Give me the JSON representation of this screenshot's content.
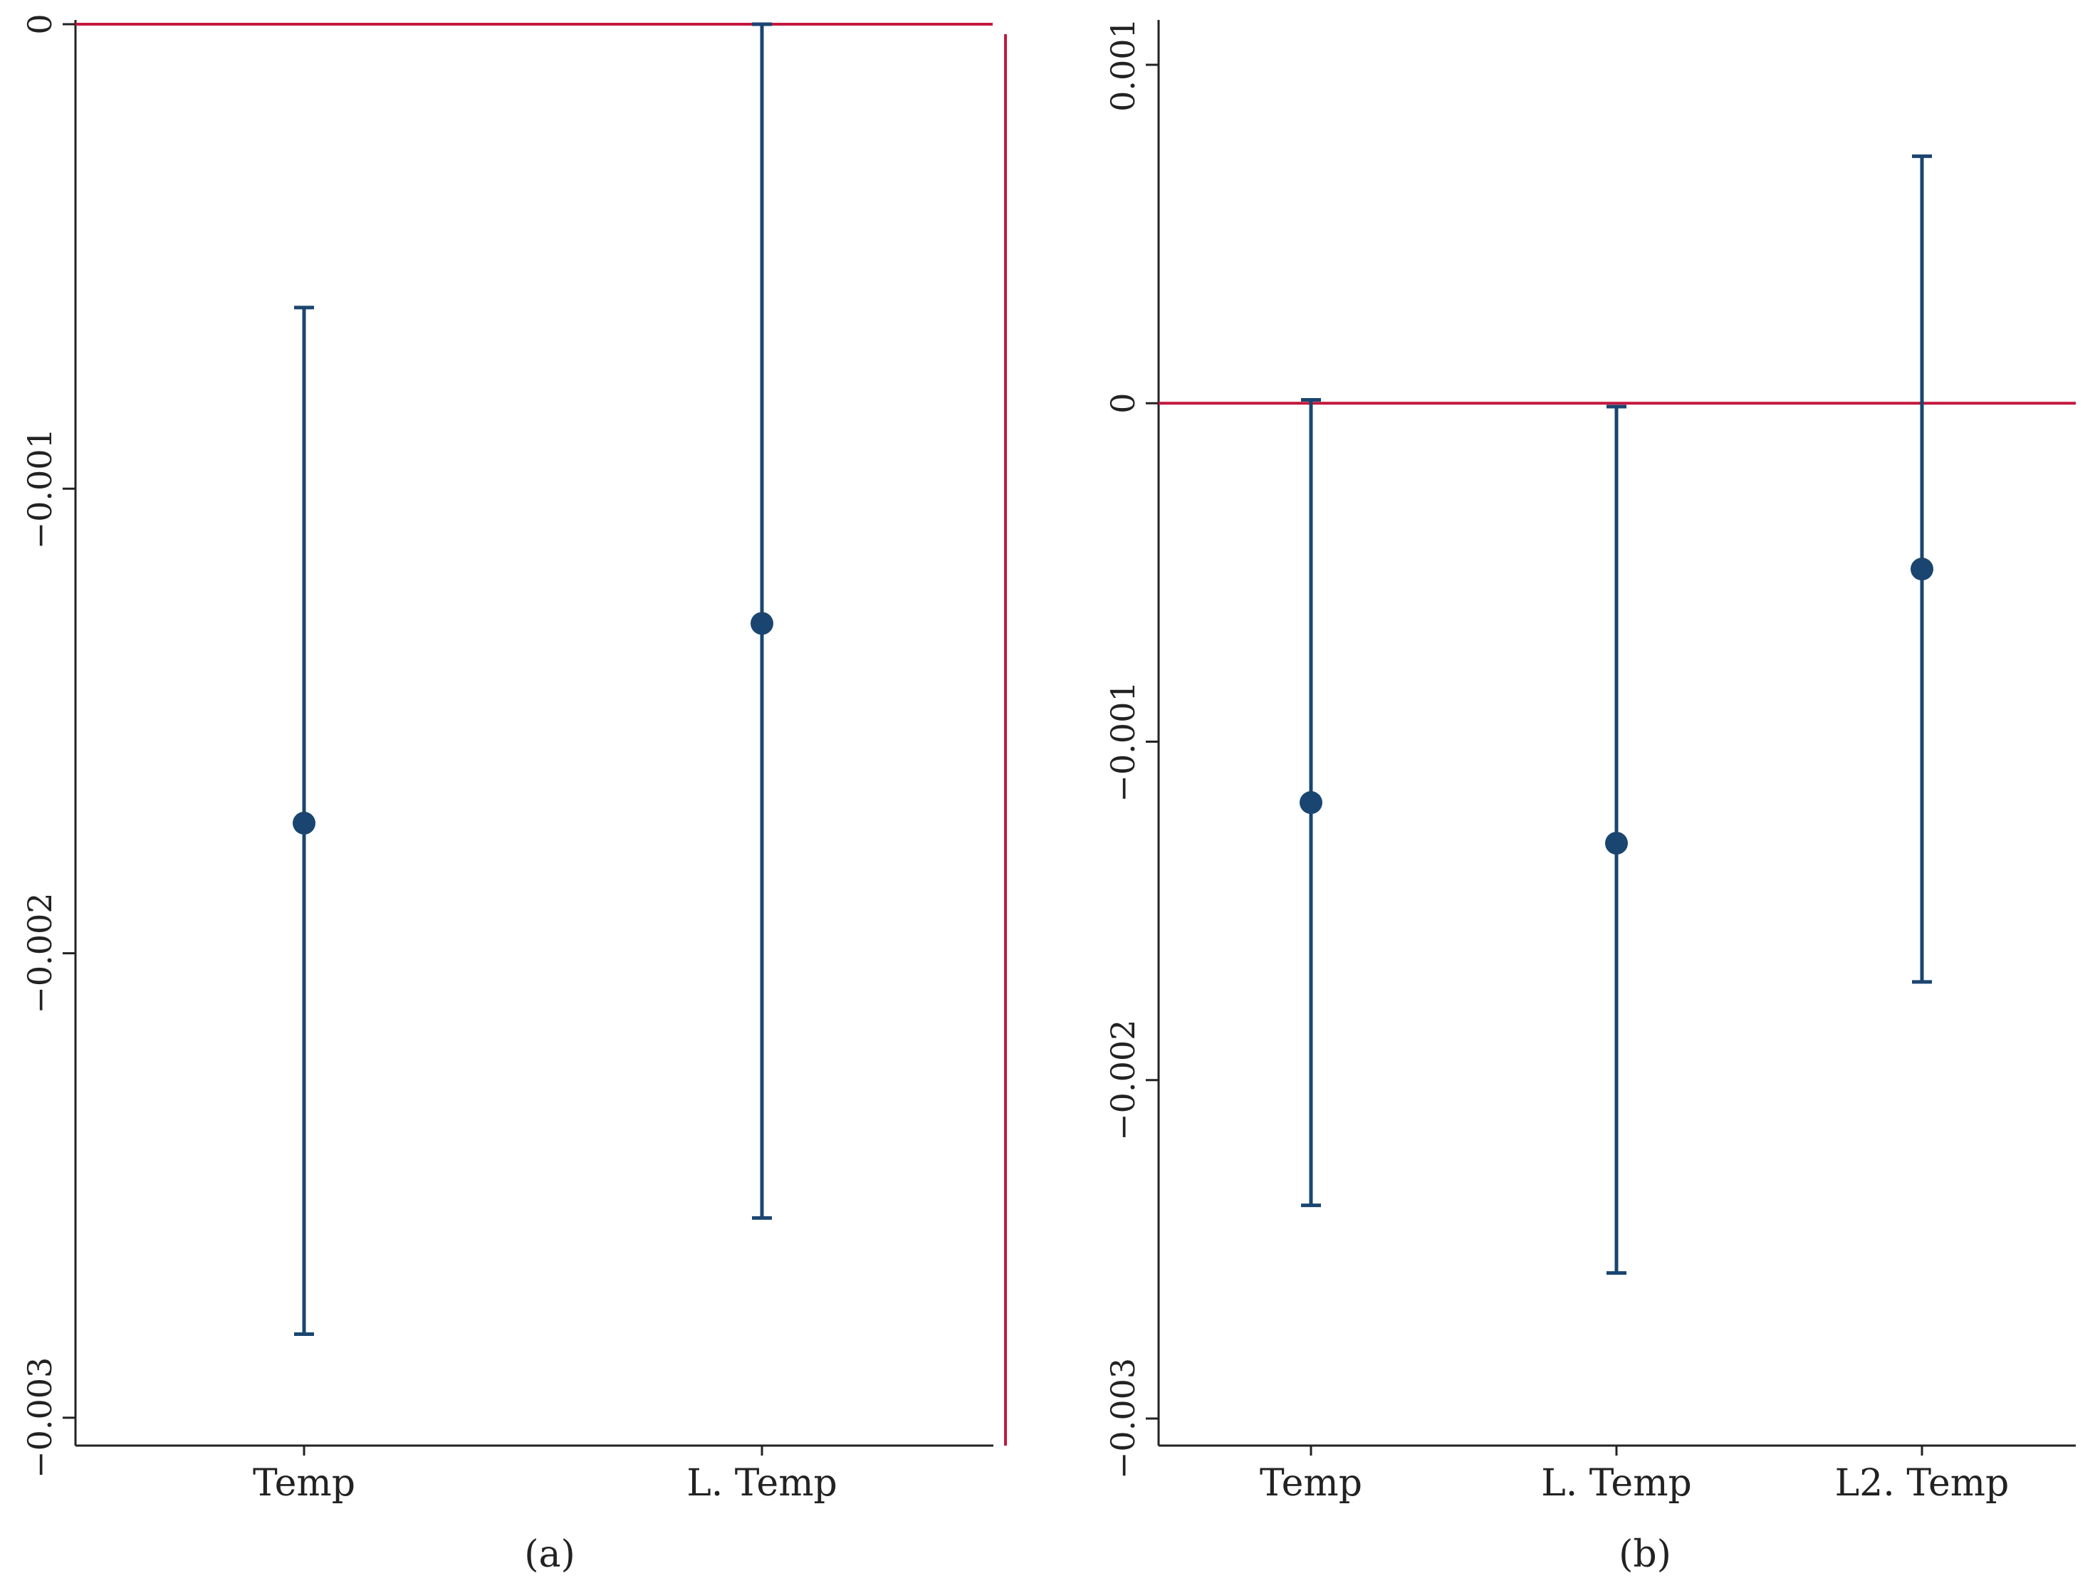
{
  "chart_data": [
    {
      "type": "scatter",
      "subtype": "coefficient-plot",
      "panel_label": "(a)",
      "categories": [
        "Temp",
        "L. Temp"
      ],
      "estimates": [
        -0.00172,
        -0.00129
      ],
      "ci_lower": [
        -0.00282,
        -0.00257
      ],
      "ci_upper": [
        -0.00061,
        0.0
      ],
      "reference_line_y": 0,
      "reference_line_x": "right",
      "yticks": [
        0,
        -0.001,
        -0.002,
        -0.003
      ],
      "ytick_labels": [
        "0",
        "-0.001",
        "-0.002",
        "-0.003"
      ],
      "ylim": [
        -0.00306,
        0.0
      ],
      "grid": false,
      "colors": {
        "point": "#1a4570",
        "reference": "#c3173f",
        "axis": "#222222"
      }
    },
    {
      "type": "scatter",
      "subtype": "coefficient-plot",
      "panel_label": "(b)",
      "categories": [
        "Temp",
        "L. Temp",
        "L2. Temp"
      ],
      "estimates": [
        -0.00118,
        -0.0013,
        -0.00049
      ],
      "ci_lower": [
        -0.00237,
        -0.00257,
        -0.00171
      ],
      "ci_upper": [
        1e-05,
        -1e-05,
        0.00073
      ],
      "reference_line_y": 0,
      "yticks": [
        0.001,
        0,
        -0.001,
        -0.002,
        -0.003
      ],
      "ytick_labels": [
        "0.001",
        "0",
        "-0.001",
        "-0.002",
        "-0.003"
      ],
      "ylim": [
        -0.00308,
        0.00112
      ],
      "grid": false,
      "colors": {
        "point": "#1a4570",
        "reference": "#c3173f",
        "axis": "#222222"
      }
    }
  ]
}
